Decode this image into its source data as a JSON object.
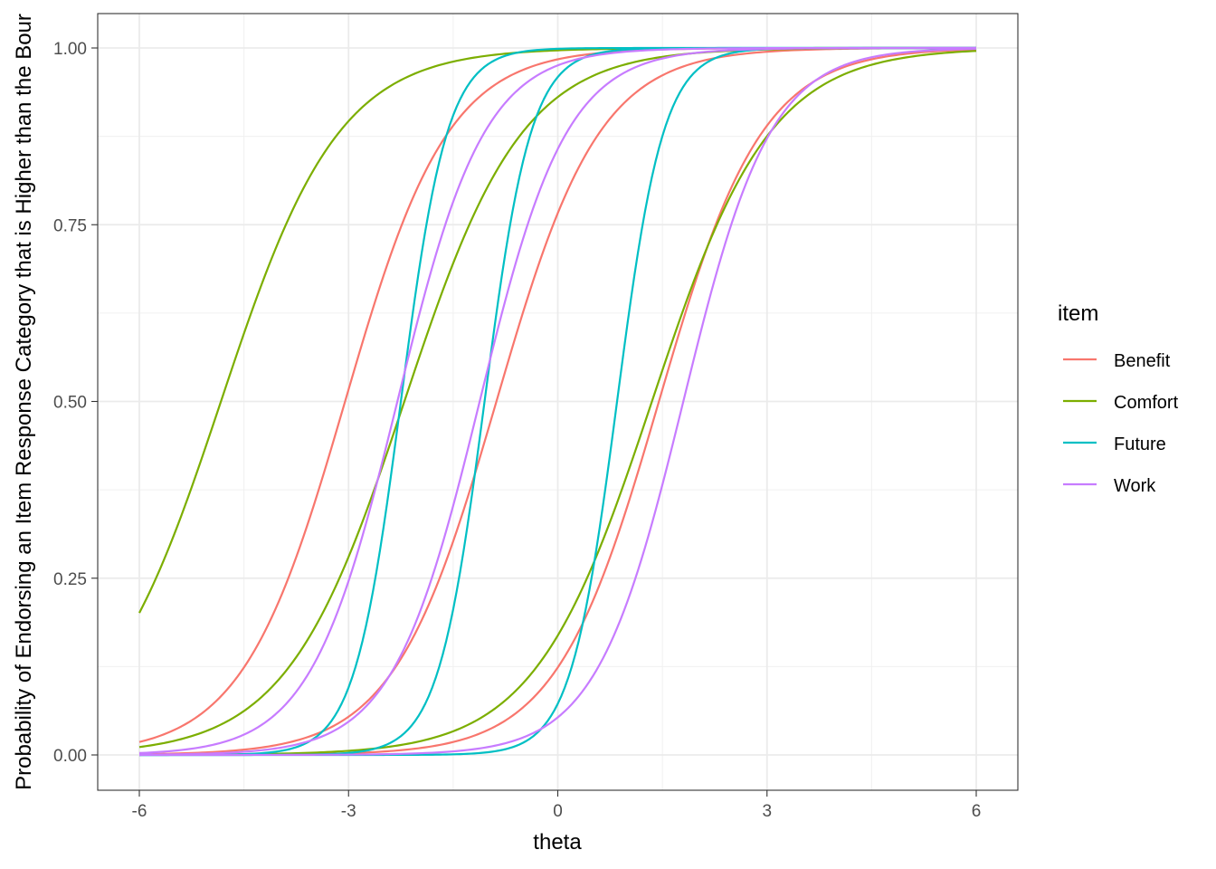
{
  "chart_data": {
    "type": "line",
    "title": "",
    "xlabel": "theta",
    "ylabel": "Probability of Endorsing an Item Response Category that is Higher than the Bour",
    "xlim": [
      -6,
      6
    ],
    "ylim": [
      0,
      1
    ],
    "x_ticks": [
      -6,
      -3,
      0,
      3,
      6
    ],
    "x_tick_labels": [
      "-6",
      "-3",
      "0",
      "3",
      "6"
    ],
    "y_ticks": [
      0,
      0.25,
      0.5,
      0.75,
      1
    ],
    "y_tick_labels": [
      "0.00",
      "0.25",
      "0.50",
      "0.75",
      "1.00"
    ],
    "grid": true,
    "legend": {
      "title": "item",
      "position": "right"
    },
    "series": [
      {
        "name": "Benefit",
        "color": "#F8766D",
        "model": "logistic",
        "curves": [
          {
            "discrimination": 1.35,
            "location": -3.05
          },
          {
            "discrimination": 1.35,
            "location": -0.88
          },
          {
            "discrimination": 1.35,
            "location": 1.45
          }
        ]
      },
      {
        "name": "Comfort",
        "color": "#7CAE00",
        "model": "logistic",
        "curves": [
          {
            "discrimination": 1.18,
            "location": -4.83
          },
          {
            "discrimination": 1.18,
            "location": -2.2
          },
          {
            "discrimination": 1.18,
            "location": 1.35
          }
        ]
      },
      {
        "name": "Future",
        "color": "#00BFC4",
        "model": "logistic",
        "curves": [
          {
            "discrimination": 3.0,
            "location": -2.25
          },
          {
            "discrimination": 3.0,
            "location": -1.05
          },
          {
            "discrimination": 3.0,
            "location": 0.85
          }
        ]
      },
      {
        "name": "Work",
        "color": "#C77CFF",
        "model": "logistic",
        "curves": [
          {
            "discrimination": 1.6,
            "location": -2.3
          },
          {
            "discrimination": 1.6,
            "location": -1.12
          },
          {
            "discrimination": 1.6,
            "location": 1.8
          }
        ]
      }
    ]
  }
}
